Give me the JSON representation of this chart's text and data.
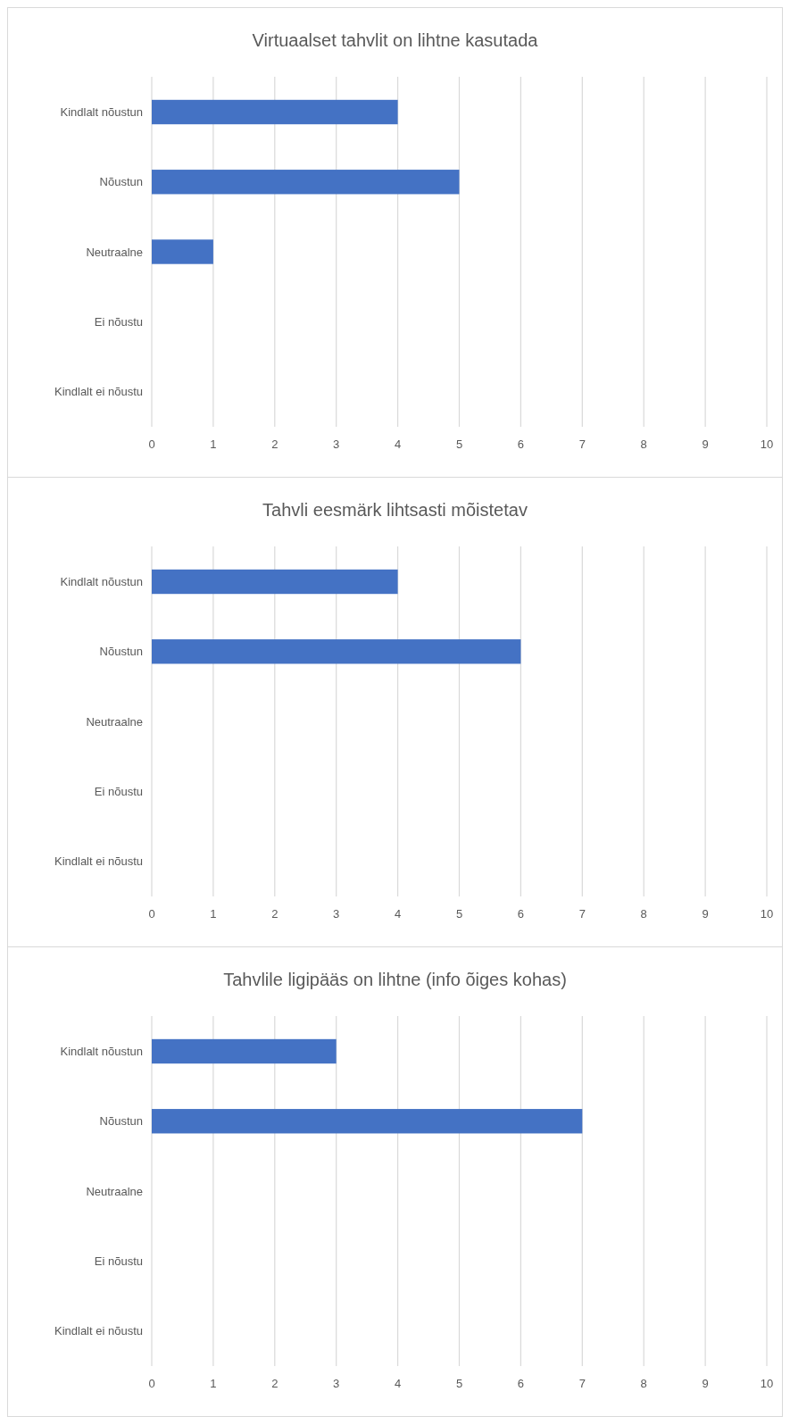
{
  "chart_data": [
    {
      "type": "bar",
      "orientation": "horizontal",
      "title": "Virtuaalset tahvlit on lihtne kasutada",
      "categories": [
        "Kindlalt nõustun",
        "Nõustun",
        "Neutraalne",
        "Ei nõustu",
        "Kindlalt ei nõustu"
      ],
      "values": [
        4,
        5,
        1,
        0,
        0
      ],
      "color": "#4472c4",
      "xlim": [
        0,
        10
      ],
      "xticks": [
        0,
        1,
        2,
        3,
        4,
        5,
        6,
        7,
        8,
        9,
        10
      ],
      "grid": "x"
    },
    {
      "type": "bar",
      "orientation": "horizontal",
      "title": "Tahvli eesmärk lihtsasti mõistetav",
      "categories": [
        "Kindlalt nõustun",
        "Nõustun",
        "Neutraalne",
        "Ei nõustu",
        "Kindlalt ei nõustu"
      ],
      "values": [
        4,
        6,
        0,
        0,
        0
      ],
      "color": "#4472c4",
      "xlim": [
        0,
        10
      ],
      "xticks": [
        0,
        1,
        2,
        3,
        4,
        5,
        6,
        7,
        8,
        9,
        10
      ],
      "grid": "x"
    },
    {
      "type": "bar",
      "orientation": "horizontal",
      "title": "Tahvlile ligipääs on lihtne (info õiges kohas)",
      "categories": [
        "Kindlalt nõustun",
        "Nõustun",
        "Neutraalne",
        "Ei nõustu",
        "Kindlalt ei nõustu"
      ],
      "values": [
        3,
        7,
        0,
        0,
        0
      ],
      "color": "#4472c4",
      "xlim": [
        0,
        10
      ],
      "xticks": [
        0,
        1,
        2,
        3,
        4,
        5,
        6,
        7,
        8,
        9,
        10
      ],
      "grid": "x"
    }
  ]
}
